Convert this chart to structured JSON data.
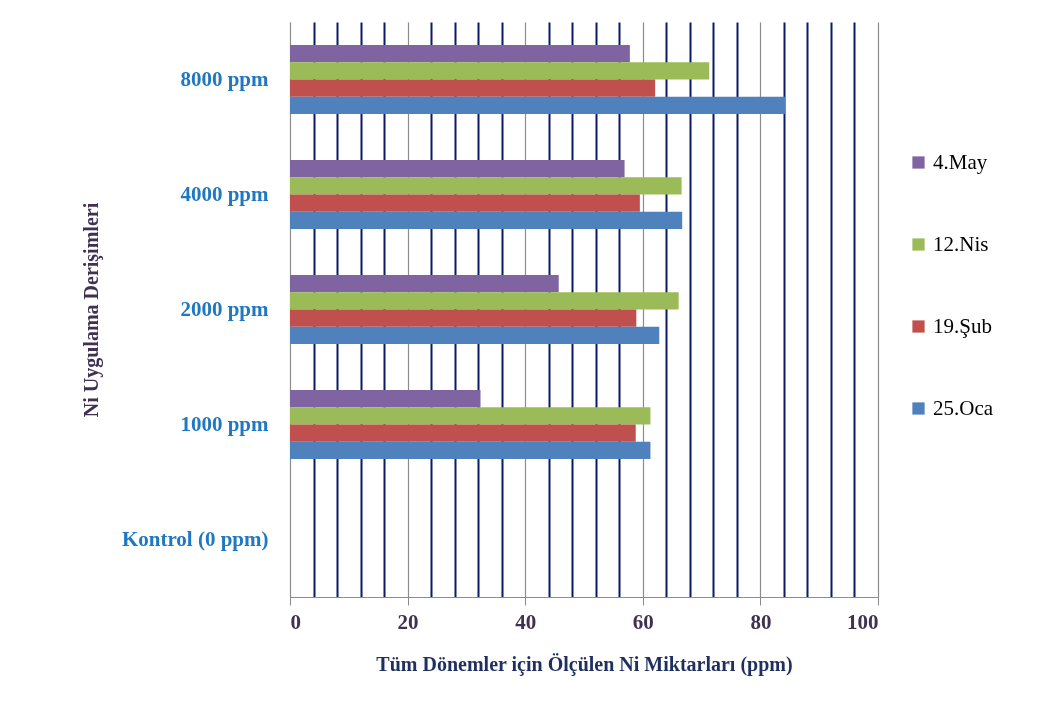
{
  "chart_data": {
    "type": "bar",
    "orientation": "horizontal",
    "xlabel": "Tüm Dönemler için Ölçülen Ni  Miktarları (ppm)",
    "ylabel": "Ni  Uygulama Derişimleri",
    "categories": [
      "8000 ppm",
      "4000 ppm",
      "2000 ppm",
      "1000 ppm",
      "Kontrol (0 ppm)"
    ],
    "series": [
      {
        "name": "4.May",
        "color": "#8064a2",
        "values": [
          57.8,
          56.9,
          45.7,
          32.4,
          0
        ]
      },
      {
        "name": "12.Nis",
        "color": "#9bbb59",
        "values": [
          71.3,
          66.6,
          66.1,
          61.3,
          0
        ]
      },
      {
        "name": "19.Şub",
        "color": "#c0504d",
        "values": [
          62.1,
          59.5,
          58.9,
          58.8,
          0
        ]
      },
      {
        "name": "25.Oca",
        "color": "#4f81bd",
        "values": [
          84.2,
          66.7,
          62.8,
          61.3,
          0
        ]
      }
    ],
    "xlim": [
      0,
      100
    ],
    "xticks": [
      0,
      {
        "value": 4,
        "label": null
      },
      {
        "value": 8,
        "label": null
      },
      {
        "value": 12,
        "label": null
      },
      {
        "value": 16,
        "label": null
      },
      20,
      {
        "value": 24,
        "label": null
      },
      {
        "value": 28,
        "label": null
      },
      {
        "value": 32,
        "label": null
      },
      {
        "value": 36,
        "label": null
      },
      40,
      {
        "value": 44,
        "label": null
      },
      {
        "value": 48,
        "label": null
      },
      {
        "value": 52,
        "label": null
      },
      {
        "value": 56,
        "label": null
      },
      60,
      {
        "value": 64,
        "label": null
      },
      {
        "value": 68,
        "label": null
      },
      {
        "value": 72,
        "label": null
      },
      {
        "value": 76,
        "label": null
      },
      80,
      {
        "value": 84,
        "label": null
      },
      {
        "value": 88,
        "label": null
      },
      {
        "value": 92,
        "label": null
      },
      {
        "value": 96,
        "label": null
      },
      100
    ],
    "grid": "x",
    "legend": "right"
  }
}
